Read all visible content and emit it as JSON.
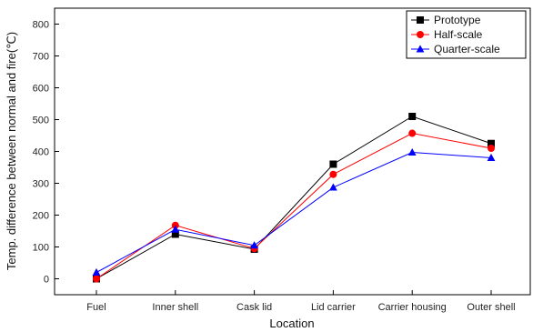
{
  "chart_data": {
    "type": "line",
    "xlabel": "Location",
    "ylabel": "Temp. difference between normal and fire(℃)",
    "categories": [
      "Fuel",
      "Inner shell",
      "Cask lid",
      "Lid carrier",
      "Carrier housing",
      "Outer shell"
    ],
    "ylim": [
      -50,
      850
    ],
    "yticks": [
      0,
      100,
      200,
      300,
      400,
      500,
      600,
      700,
      800
    ],
    "grid": false,
    "legend_position": "top-right",
    "series": [
      {
        "name": "Prototype",
        "color": "#000000",
        "marker": "square",
        "values": [
          0,
          140,
          93,
          360,
          510,
          425
        ]
      },
      {
        "name": "Half-scale",
        "color": "#ff0000",
        "marker": "circle",
        "values": [
          0,
          168,
          95,
          328,
          457,
          410
        ]
      },
      {
        "name": "Quarter-scale",
        "color": "#0000ff",
        "marker": "triangle",
        "values": [
          20,
          155,
          105,
          287,
          397,
          380
        ]
      }
    ]
  }
}
